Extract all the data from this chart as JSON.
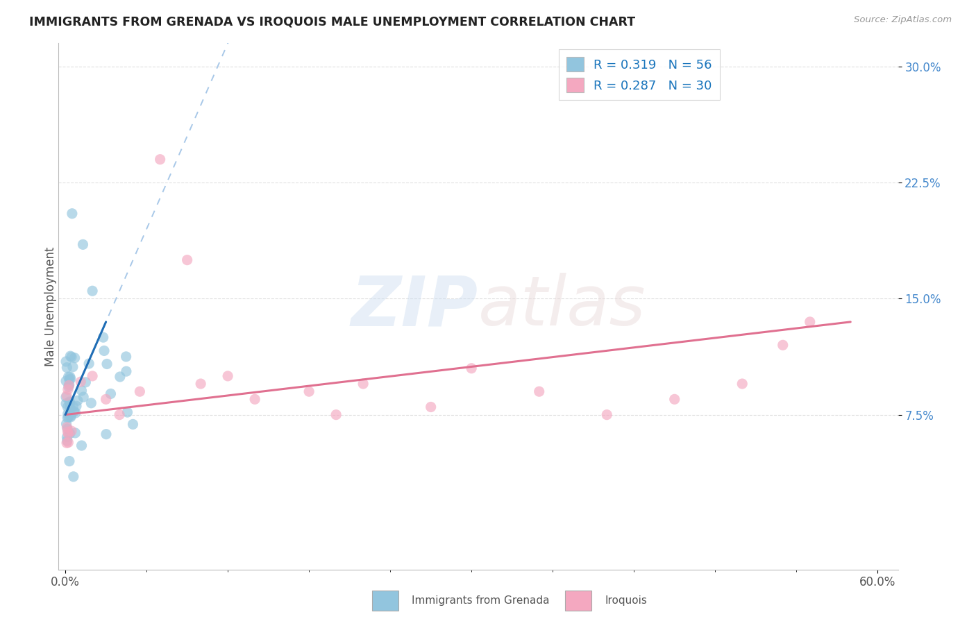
{
  "title": "IMMIGRANTS FROM GRENADA VS IROQUOIS MALE UNEMPLOYMENT CORRELATION CHART",
  "source": "Source: ZipAtlas.com",
  "ylabel": "Male Unemployment",
  "color_blue": "#92c5de",
  "color_pink": "#f4a8c0",
  "line_blue": "#1f6db5",
  "line_pink": "#e07090",
  "line_dashed_color": "#a8c8e8",
  "background": "#ffffff",
  "grid_color": "#e0e0e0",
  "ytick_color": "#4488cc",
  "xtick_color": "#555555"
}
